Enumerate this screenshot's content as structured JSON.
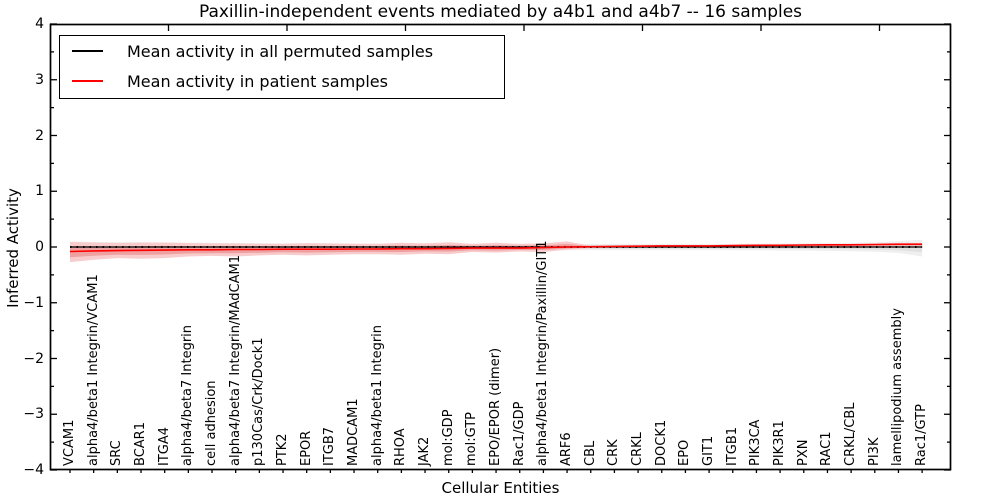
{
  "title": "Paxillin-independent events mediated by a4b1 and a4b7 -- 16 samples",
  "axes": {
    "xlabel": "Cellular Entities",
    "ylabel": "Inferred Activity",
    "ylim": [
      -4,
      4
    ],
    "yticks": [
      {
        "label": "4",
        "value": 4
      },
      {
        "label": "3",
        "value": 3
      },
      {
        "label": "2",
        "value": 2
      },
      {
        "label": "1",
        "value": 1
      },
      {
        "label": "0",
        "value": 0
      },
      {
        "label": "−1",
        "value": -1
      },
      {
        "label": "−2",
        "value": -2
      },
      {
        "label": "−3",
        "value": -3
      },
      {
        "label": "−4",
        "value": -4
      }
    ]
  },
  "legend": {
    "items": [
      {
        "label": "Mean activity in all permuted samples",
        "color": "#000000"
      },
      {
        "label": "Mean activity in patient samples",
        "color": "#ff0000"
      }
    ]
  },
  "chart_data": {
    "type": "line",
    "title": "Paxillin-independent events mediated by a4b1 and a4b7 -- 16 samples",
    "xlabel": "Cellular Entities",
    "ylabel": "Inferred Activity",
    "ylim": [
      -4,
      4
    ],
    "grid": false,
    "legend_position": "upper left",
    "categories": [
      "VCAM1",
      "alpha4/beta1 Integrin/VCAM1",
      "SRC",
      "BCAR1",
      "ITGA4",
      "alpha4/beta7 Integrin",
      "cell adhesion",
      "alpha4/beta7 Integrin/MAdCAM1",
      "p130Cas/Crk/Dock1",
      "PTK2",
      "EPOR",
      "ITGB7",
      "MADCAM1",
      "alpha4/beta1 Integrin",
      "RHOA",
      "JAK2",
      "mol:GDP",
      "mol:GTP",
      "EPO/EPOR (dimer)",
      "Rac1/GDP",
      "alpha4/beta1 Integrin/Paxillin/GIT1",
      "ARF6",
      "CBL",
      "CRK",
      "CRKL",
      "DOCK1",
      "EPO",
      "GIT1",
      "ITGB1",
      "PIK3CA",
      "PIK3R1",
      "PXN",
      "RAC1",
      "CRKL/CBL",
      "PI3K",
      "lamellipodium assembly",
      "Rac1/GTP"
    ],
    "series": [
      {
        "name": "Mean activity in all permuted samples",
        "line_color": "#000000",
        "band_outer_color": "#efefef",
        "band_inner_color": "#e1e1e1",
        "values": [
          0,
          0,
          0,
          0,
          0,
          0,
          0,
          0,
          0,
          0,
          0,
          0,
          0,
          0,
          0,
          0,
          0,
          0,
          0,
          0,
          0,
          0,
          0,
          0,
          0,
          0,
          0,
          0,
          0,
          0,
          0,
          0,
          0,
          0,
          0,
          0,
          0
        ],
        "band_upper": [
          0.1,
          0.09,
          0.09,
          0.085,
          0.08,
          0.08,
          0.075,
          0.07,
          0.07,
          0.065,
          0.065,
          0.06,
          0.06,
          0.06,
          0.06,
          0.055,
          0.06,
          0.055,
          0.055,
          0.055,
          0.06,
          0.06,
          0.055,
          0.055,
          0.055,
          0.055,
          0.055,
          0.055,
          0.06,
          0.06,
          0.065,
          0.065,
          0.07,
          0.075,
          0.085,
          0.105,
          0.13
        ],
        "band_lower": [
          -0.1,
          -0.09,
          -0.09,
          -0.085,
          -0.08,
          -0.08,
          -0.075,
          -0.07,
          -0.07,
          -0.065,
          -0.065,
          -0.06,
          -0.06,
          -0.06,
          -0.06,
          -0.055,
          -0.06,
          -0.055,
          -0.055,
          -0.055,
          -0.06,
          -0.06,
          -0.055,
          -0.055,
          -0.055,
          -0.055,
          -0.055,
          -0.055,
          -0.06,
          -0.06,
          -0.065,
          -0.065,
          -0.07,
          -0.075,
          -0.085,
          -0.105,
          -0.17
        ]
      },
      {
        "name": "Mean activity in patient samples",
        "line_color": "#ff0000",
        "band_outer_color": "#f8cccc",
        "band_inner_color": "#efa0a0",
        "values": [
          -0.08,
          -0.07,
          -0.065,
          -0.06,
          -0.055,
          -0.05,
          -0.05,
          -0.045,
          -0.045,
          -0.04,
          -0.04,
          -0.04,
          -0.035,
          -0.035,
          -0.03,
          -0.03,
          -0.025,
          -0.02,
          -0.02,
          -0.02,
          -0.01,
          0.0,
          0.005,
          0.01,
          0.015,
          0.02,
          0.02,
          0.02,
          0.025,
          0.03,
          0.03,
          0.035,
          0.04,
          0.04,
          0.045,
          0.05,
          0.05
        ],
        "band_upper": [
          0.09,
          0.08,
          0.07,
          0.08,
          0.08,
          0.07,
          0.065,
          0.065,
          0.06,
          0.06,
          0.07,
          0.065,
          0.06,
          0.06,
          0.075,
          0.065,
          0.085,
          0.055,
          0.075,
          0.055,
          0.065,
          0.1,
          0.02,
          0.012,
          0.012,
          0.012,
          0.012,
          0.012,
          0.012,
          0.012,
          0.012,
          0.012,
          0.012,
          0.012,
          0.012,
          0.012,
          0.012
        ],
        "band_lower": [
          -0.27,
          -0.23,
          -0.2,
          -0.21,
          -0.2,
          -0.17,
          -0.16,
          -0.17,
          -0.15,
          -0.14,
          -0.15,
          -0.14,
          -0.13,
          -0.13,
          -0.14,
          -0.12,
          -0.13,
          -0.09,
          -0.1,
          -0.08,
          -0.09,
          -0.05,
          -0.02,
          -0.012,
          -0.012,
          -0.012,
          -0.012,
          -0.012,
          -0.012,
          -0.012,
          -0.012,
          -0.012,
          -0.012,
          -0.012,
          -0.012,
          -0.012,
          -0.012
        ]
      }
    ]
  }
}
